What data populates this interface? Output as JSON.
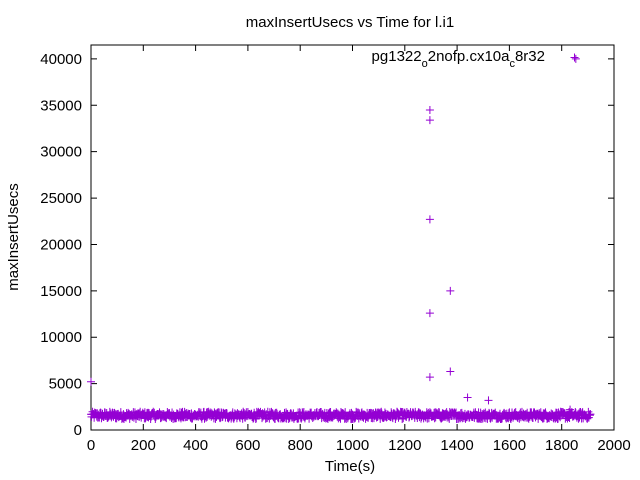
{
  "chart_data": {
    "type": "scatter",
    "title": "maxInsertUsecs vs Time for l.i1",
    "xlabel": "Time(s)",
    "ylabel": "maxInsertUsecs",
    "xlim": [
      0,
      2000
    ],
    "ylim": [
      0,
      41500
    ],
    "xticks": [
      0,
      200,
      400,
      600,
      800,
      1000,
      1200,
      1400,
      1600,
      1800,
      2000
    ],
    "yticks": [
      0,
      5000,
      10000,
      15000,
      20000,
      25000,
      30000,
      35000,
      40000
    ],
    "grid": false,
    "legend_position": "top-right",
    "marker": "+",
    "series": [
      {
        "name": "pg1322_o2nofp.cx10a_c8r32",
        "legend_parts": [
          {
            "text": "pg1322",
            "sub": false
          },
          {
            "text": "o",
            "sub": true
          },
          {
            "text": "2nofp.cx10a",
            "sub": false
          },
          {
            "text": "c",
            "sub": true
          },
          {
            "text": "8r32",
            "sub": false
          }
        ],
        "color": "#9400d3",
        "baseline": {
          "x_start": 0,
          "x_end": 1910,
          "step": 2,
          "low": 1050,
          "high": 2100
        },
        "outliers": [
          {
            "x": 0,
            "y": 5200
          },
          {
            "x": 1296,
            "y": 34500
          },
          {
            "x": 1296,
            "y": 33400
          },
          {
            "x": 1296,
            "y": 22700
          },
          {
            "x": 1296,
            "y": 12600
          },
          {
            "x": 1296,
            "y": 5700
          },
          {
            "x": 1374,
            "y": 15000
          },
          {
            "x": 1374,
            "y": 6300
          },
          {
            "x": 1440,
            "y": 3500
          },
          {
            "x": 1520,
            "y": 3200
          },
          {
            "x": 1832,
            "y": 2200
          },
          {
            "x": 1854,
            "y": 40000
          }
        ]
      }
    ]
  }
}
